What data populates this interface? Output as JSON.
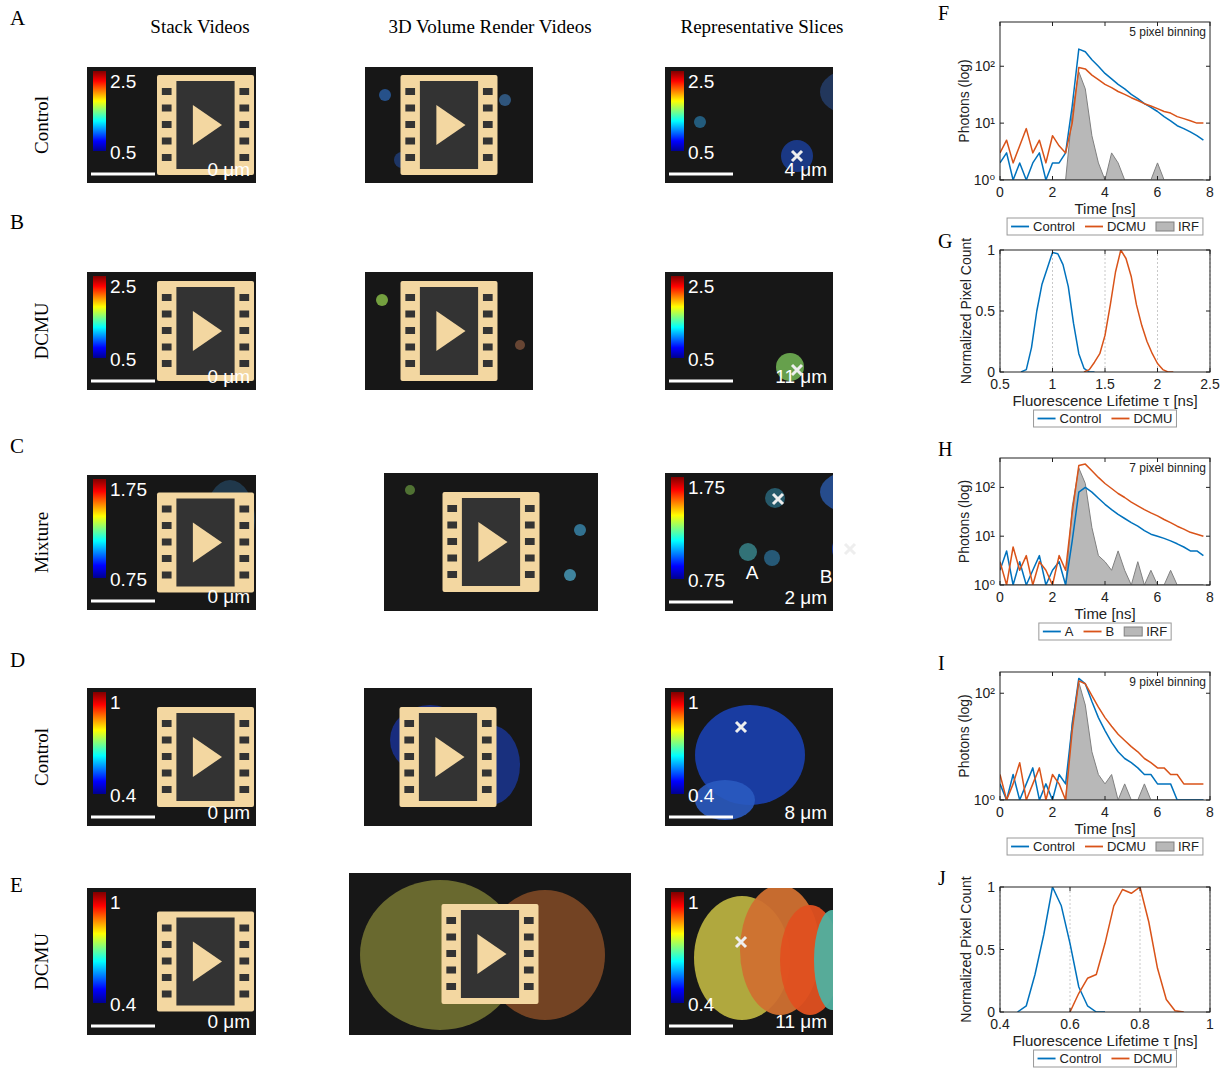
{
  "image_panels": {
    "column_headers": [
      "Stack Videos",
      "3D Volume Render Videos",
      "Representative Slices"
    ],
    "rows": [
      {
        "letter": "A",
        "label": "Control",
        "colorbar": {
          "max": 2.5,
          "min": 0.5
        },
        "stack_depth": "0 μm",
        "slice_depth": "4 μm"
      },
      {
        "letter": "B",
        "label": "DCMU",
        "colorbar": {
          "max": 2.5,
          "min": 0.5
        },
        "stack_depth": "0 μm",
        "slice_depth": "11 μm"
      },
      {
        "letter": "C",
        "label": "Mixture",
        "colorbar": {
          "max": 1.75,
          "min": 0.75
        },
        "stack_depth": "0 μm",
        "slice_depth": "2 μm",
        "slice_labels": [
          "A",
          "B"
        ]
      },
      {
        "letter": "D",
        "label": "Control",
        "colorbar": {
          "max": 1,
          "min": 0.4
        },
        "stack_depth": "0 μm",
        "slice_depth": "8 μm"
      },
      {
        "letter": "E",
        "label": "DCMU",
        "colorbar": {
          "max": 1,
          "min": 0.4
        },
        "stack_depth": "0 μm",
        "slice_depth": "11 μm"
      }
    ]
  },
  "chart_data": [
    {
      "letter": "F",
      "type": "line",
      "annotation": "5 pixel binning",
      "xlabel": "Time [ns]",
      "ylabel": "Photons (log)",
      "log": "y",
      "legend": "bottom",
      "xlim": [
        0,
        8
      ],
      "xticks": [
        0,
        2,
        4,
        6,
        8
      ],
      "ylim": [
        1,
        600
      ],
      "yticks": [
        {
          "value": 1,
          "label": "10⁰"
        },
        {
          "value": 10,
          "label": "10¹"
        },
        {
          "value": 100,
          "label": "10²"
        }
      ],
      "x": [
        0,
        0.25,
        0.5,
        0.75,
        1,
        1.25,
        1.5,
        1.75,
        2,
        2.25,
        2.5,
        2.75,
        3,
        3.25,
        3.5,
        3.75,
        4,
        4.25,
        4.5,
        4.75,
        5,
        5.25,
        5.5,
        5.75,
        6,
        6.25,
        6.5,
        6.75,
        7,
        7.25,
        7.5,
        7.75
      ],
      "series": [
        {
          "name": "Control",
          "color": "#0072bd",
          "values": [
            2,
            3,
            1,
            2,
            1,
            2,
            3,
            1,
            2,
            2,
            3,
            20,
            200,
            180,
            130,
            100,
            75,
            60,
            48,
            40,
            32,
            27,
            22,
            19,
            16,
            13,
            11,
            9,
            8,
            7,
            6,
            5
          ]
        },
        {
          "name": "DCMU",
          "color": "#d95319",
          "values": [
            3,
            5,
            2,
            4,
            8,
            3,
            5,
            2,
            6,
            4,
            3,
            10,
            95,
            90,
            70,
            58,
            48,
            42,
            36,
            32,
            28,
            25,
            22,
            20,
            18,
            16,
            15,
            13,
            12,
            11,
            10,
            10
          ]
        },
        {
          "name": "IRF",
          "type": "area",
          "color": "#b8b8b8",
          "values": [
            1,
            1,
            1,
            1,
            1,
            1,
            1,
            1,
            1,
            1,
            1,
            15,
            80,
            40,
            6,
            2,
            1,
            3,
            2,
            1,
            1,
            1,
            1,
            1,
            2,
            1,
            1,
            1,
            1,
            1,
            1,
            1
          ]
        }
      ]
    },
    {
      "letter": "G",
      "type": "line",
      "xlabel": "Fluorescence Lifetime τ [ns]",
      "ylabel": "Normalized Pixel Count",
      "legend": "bottom",
      "grid": true,
      "xlim": [
        0.5,
        2.5
      ],
      "xticks": [
        0.5,
        1,
        1.5,
        2,
        2.5
      ],
      "ylim": [
        0,
        1
      ],
      "yticks": [
        0,
        0.5,
        1
      ],
      "x": [
        0.5,
        0.55,
        0.6,
        0.65,
        0.7,
        0.75,
        0.8,
        0.85,
        0.9,
        0.95,
        1,
        1.05,
        1.1,
        1.15,
        1.2,
        1.25,
        1.3,
        1.35,
        1.4,
        1.45,
        1.5,
        1.55,
        1.6,
        1.65,
        1.7,
        1.75,
        1.8,
        1.85,
        1.9,
        1.95,
        2,
        2.05,
        2.1,
        2.15,
        2.2,
        2.25,
        2.3,
        2.35,
        2.4,
        2.45,
        2.5
      ],
      "series": [
        {
          "name": "Control",
          "color": "#0072bd",
          "values": [
            null,
            null,
            null,
            null,
            0,
            0.02,
            0.2,
            0.5,
            0.72,
            0.85,
            0.98,
            0.97,
            0.88,
            0.7,
            0.4,
            0.15,
            0.03,
            0,
            0,
            null,
            null,
            null,
            null,
            null,
            null,
            null,
            null,
            null,
            null,
            null,
            null,
            null,
            null,
            null,
            null,
            null,
            null,
            null,
            null,
            null,
            null
          ]
        },
        {
          "name": "DCMU",
          "color": "#d95319",
          "values": [
            null,
            null,
            null,
            null,
            null,
            null,
            null,
            null,
            null,
            null,
            null,
            null,
            null,
            null,
            null,
            null,
            0,
            0.02,
            0.08,
            0.15,
            0.3,
            0.55,
            0.82,
            1,
            0.93,
            0.78,
            0.55,
            0.38,
            0.25,
            0.15,
            0.07,
            0.02,
            0,
            0,
            null,
            null,
            null,
            null,
            null,
            null,
            null
          ]
        }
      ]
    },
    {
      "letter": "H",
      "type": "line",
      "annotation": "7 pixel binning",
      "xlabel": "Time [ns]",
      "ylabel": "Photons (log)",
      "log": "y",
      "legend": "bottom",
      "xlim": [
        0,
        8
      ],
      "xticks": [
        0,
        2,
        4,
        6,
        8
      ],
      "ylim": [
        1,
        400
      ],
      "yticks": [
        {
          "value": 1,
          "label": "10⁰"
        },
        {
          "value": 10,
          "label": "10¹"
        },
        {
          "value": 100,
          "label": "10²"
        }
      ],
      "x": [
        0,
        0.25,
        0.5,
        0.75,
        1,
        1.25,
        1.5,
        1.75,
        2,
        2.25,
        2.5,
        2.75,
        3,
        3.25,
        3.5,
        3.75,
        4,
        4.25,
        4.5,
        4.75,
        5,
        5.25,
        5.5,
        5.75,
        6,
        6.25,
        6.5,
        6.75,
        7,
        7.25,
        7.5,
        7.75
      ],
      "series": [
        {
          "name": "A",
          "color": "#0072bd",
          "values": [
            2,
            5,
            1,
            3,
            1,
            2,
            4,
            1,
            2,
            3,
            1,
            8,
            80,
            100,
            80,
            60,
            45,
            35,
            28,
            23,
            19,
            16,
            13,
            11,
            10,
            9,
            8,
            7,
            6,
            5,
            5,
            4
          ]
        },
        {
          "name": "B",
          "color": "#d95319",
          "values": [
            3,
            1,
            6,
            2,
            4,
            1,
            3,
            2,
            1,
            4,
            2,
            30,
            280,
            300,
            220,
            160,
            120,
            95,
            75,
            62,
            50,
            42,
            35,
            30,
            26,
            22,
            19,
            16,
            14,
            12,
            11,
            10
          ]
        },
        {
          "name": "IRF",
          "type": "area",
          "color": "#b8b8b8",
          "values": [
            1,
            1,
            1,
            1,
            1,
            1,
            1,
            1,
            1,
            1,
            1,
            40,
            250,
            120,
            15,
            4,
            3,
            2,
            5,
            2,
            1,
            3,
            1,
            2,
            1,
            1,
            2,
            1,
            1,
            1,
            1,
            1
          ]
        }
      ]
    },
    {
      "letter": "I",
      "type": "line",
      "annotation": "9 pixel binning",
      "xlabel": "Time [ns]",
      "ylabel": "Photons (log)",
      "log": "y",
      "legend": "bottom",
      "xlim": [
        0,
        8
      ],
      "xticks": [
        0,
        2,
        4,
        6,
        8
      ],
      "ylim": [
        1,
        250
      ],
      "yticks": [
        {
          "value": 1,
          "label": "10⁰"
        },
        {
          "value": 100,
          "label": "10²"
        }
      ],
      "x": [
        0,
        0.25,
        0.5,
        0.75,
        1,
        1.25,
        1.5,
        1.75,
        2,
        2.25,
        2.5,
        2.75,
        3,
        3.25,
        3.5,
        3.75,
        4,
        4.25,
        4.5,
        4.75,
        5,
        5.25,
        5.5,
        5.75,
        6,
        6.25,
        6.5,
        6.75,
        7,
        7.25,
        7.5,
        7.75
      ],
      "series": [
        {
          "name": "Control",
          "color": "#0072bd",
          "values": [
            2,
            1,
            3,
            1,
            2,
            4,
            1,
            2,
            1,
            3,
            2,
            25,
            190,
            150,
            70,
            35,
            20,
            12,
            8,
            6,
            5,
            4,
            3,
            3,
            2,
            2,
            2,
            1,
            1,
            1,
            1,
            1
          ]
        },
        {
          "name": "DCMU",
          "color": "#d95319",
          "values": [
            3,
            1,
            2,
            5,
            1,
            2,
            4,
            1,
            3,
            2,
            1,
            20,
            170,
            150,
            90,
            55,
            35,
            24,
            17,
            13,
            10,
            8,
            6,
            5,
            4,
            4,
            3,
            3,
            2,
            2,
            2,
            2
          ]
        },
        {
          "name": "IRF",
          "type": "area",
          "color": "#b8b8b8",
          "values": [
            1,
            1,
            1,
            1,
            1,
            1,
            1,
            1,
            1,
            1,
            1,
            30,
            160,
            60,
            8,
            3,
            2,
            3,
            1,
            2,
            1,
            1,
            2,
            1,
            1,
            1,
            1,
            1,
            1,
            1,
            1,
            1
          ]
        }
      ]
    },
    {
      "letter": "J",
      "type": "line",
      "xlabel": "Fluorescence Lifetime τ [ns]",
      "ylabel": "Normalized Pixel Count",
      "legend": "bottom",
      "grid": true,
      "xlim": [
        0.4,
        1
      ],
      "xticks": [
        0.4,
        0.6,
        0.8,
        1
      ],
      "ylim": [
        0,
        1
      ],
      "yticks": [
        0,
        0.5,
        1
      ],
      "x": [
        0.4,
        0.425,
        0.45,
        0.475,
        0.5,
        0.525,
        0.55,
        0.575,
        0.6,
        0.625,
        0.65,
        0.675,
        0.7,
        0.725,
        0.75,
        0.775,
        0.8,
        0.825,
        0.85,
        0.875,
        0.9,
        0.925,
        0.95,
        0.975,
        1
      ],
      "series": [
        {
          "name": "Control",
          "color": "#0072bd",
          "values": [
            null,
            null,
            0,
            0.05,
            0.3,
            0.62,
            1,
            0.85,
            0.55,
            0.2,
            0.05,
            0,
            0,
            null,
            null,
            null,
            null,
            null,
            null,
            null,
            null,
            null,
            null,
            null,
            null
          ]
        },
        {
          "name": "DCMU",
          "color": "#d95319",
          "values": [
            null,
            null,
            null,
            null,
            null,
            null,
            null,
            null,
            0,
            0.15,
            0.27,
            0.3,
            0.55,
            0.85,
            0.98,
            0.95,
            1,
            0.72,
            0.35,
            0.1,
            0.01,
            0,
            null,
            null,
            null
          ]
        }
      ]
    }
  ]
}
